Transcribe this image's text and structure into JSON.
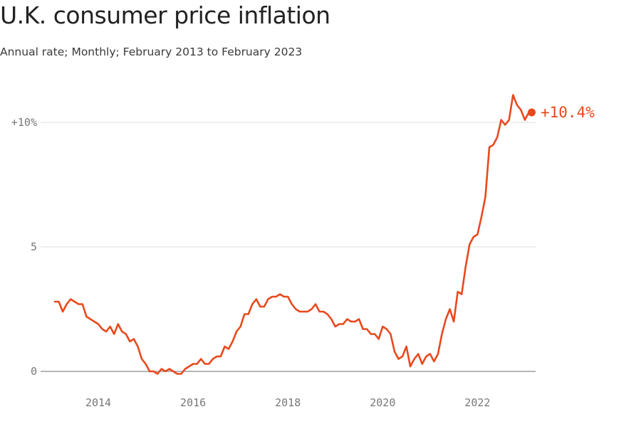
{
  "title": "U.K. consumer price inflation",
  "subtitle": "Annual rate; Monthly; February 2013 to February 2023",
  "chart_data": {
    "type": "line",
    "title": "U.K. consumer price inflation",
    "subtitle": "Annual rate; Monthly; February 2013 to February 2023",
    "xlabel": "",
    "ylabel": "",
    "xlim": [
      "2013-02",
      "2023-02"
    ],
    "ylim": [
      0,
      11.5
    ],
    "yticks": [
      {
        "value": 0,
        "label": "0"
      },
      {
        "value": 5,
        "label": "5"
      },
      {
        "value": 10,
        "label": "+10%"
      }
    ],
    "xticks": [
      {
        "date": "2014-01",
        "label": "2014"
      },
      {
        "date": "2016-01",
        "label": "2016"
      },
      {
        "date": "2018-01",
        "label": "2018"
      },
      {
        "date": "2020-01",
        "label": "2020"
      },
      {
        "date": "2022-01",
        "label": "2022"
      }
    ],
    "grid": true,
    "line_color": "#e8491d",
    "end_label": "+10.4%",
    "series": [
      {
        "x": [
          "2013-02",
          "2013-03",
          "2013-04",
          "2013-05",
          "2013-06",
          "2013-07",
          "2013-08",
          "2013-09",
          "2013-10",
          "2013-11",
          "2013-12",
          "2014-01",
          "2014-02",
          "2014-03",
          "2014-04",
          "2014-05",
          "2014-06",
          "2014-07",
          "2014-08",
          "2014-09",
          "2014-10",
          "2014-11",
          "2014-12",
          "2015-01",
          "2015-02",
          "2015-03",
          "2015-04",
          "2015-05",
          "2015-06",
          "2015-07",
          "2015-08",
          "2015-09",
          "2015-10",
          "2015-11",
          "2015-12",
          "2016-01",
          "2016-02",
          "2016-03",
          "2016-04",
          "2016-05",
          "2016-06",
          "2016-07",
          "2016-08",
          "2016-09",
          "2016-10",
          "2016-11",
          "2016-12",
          "2017-01",
          "2017-02",
          "2017-03",
          "2017-04",
          "2017-05",
          "2017-06",
          "2017-07",
          "2017-08",
          "2017-09",
          "2017-10",
          "2017-11",
          "2017-12",
          "2018-01",
          "2018-02",
          "2018-03",
          "2018-04",
          "2018-05",
          "2018-06",
          "2018-07",
          "2018-08",
          "2018-09",
          "2018-10",
          "2018-11",
          "2018-12",
          "2019-01",
          "2019-02",
          "2019-03",
          "2019-04",
          "2019-05",
          "2019-06",
          "2019-07",
          "2019-08",
          "2019-09",
          "2019-10",
          "2019-11",
          "2019-12",
          "2020-01",
          "2020-02",
          "2020-03",
          "2020-04",
          "2020-05",
          "2020-06",
          "2020-07",
          "2020-08",
          "2020-09",
          "2020-10",
          "2020-11",
          "2020-12",
          "2021-01",
          "2021-02",
          "2021-03",
          "2021-04",
          "2021-05",
          "2021-06",
          "2021-07",
          "2021-08",
          "2021-09",
          "2021-10",
          "2021-11",
          "2021-12",
          "2022-01",
          "2022-02",
          "2022-03",
          "2022-04",
          "2022-05",
          "2022-06",
          "2022-07",
          "2022-08",
          "2022-09",
          "2022-10",
          "2022-11",
          "2022-12",
          "2023-01",
          "2023-02"
        ],
        "y": [
          2.8,
          2.8,
          2.4,
          2.7,
          2.9,
          2.8,
          2.7,
          2.7,
          2.2,
          2.1,
          2.0,
          1.9,
          1.7,
          1.6,
          1.8,
          1.5,
          1.9,
          1.6,
          1.5,
          1.2,
          1.3,
          1.0,
          0.5,
          0.3,
          0.0,
          0.0,
          -0.1,
          0.1,
          0.0,
          0.1,
          0.0,
          -0.1,
          -0.1,
          0.1,
          0.2,
          0.3,
          0.3,
          0.5,
          0.3,
          0.3,
          0.5,
          0.6,
          0.6,
          1.0,
          0.9,
          1.2,
          1.6,
          1.8,
          2.3,
          2.3,
          2.7,
          2.9,
          2.6,
          2.6,
          2.9,
          3.0,
          3.0,
          3.1,
          3.0,
          3.0,
          2.7,
          2.5,
          2.4,
          2.4,
          2.4,
          2.5,
          2.7,
          2.4,
          2.4,
          2.3,
          2.1,
          1.8,
          1.9,
          1.9,
          2.1,
          2.0,
          2.0,
          2.1,
          1.7,
          1.7,
          1.5,
          1.5,
          1.3,
          1.8,
          1.7,
          1.5,
          0.8,
          0.5,
          0.6,
          1.0,
          0.2,
          0.5,
          0.7,
          0.3,
          0.6,
          0.7,
          0.4,
          0.7,
          1.5,
          2.1,
          2.5,
          2.0,
          3.2,
          3.1,
          4.2,
          5.1,
          5.4,
          5.5,
          6.2,
          7.0,
          9.0,
          9.1,
          9.4,
          10.1,
          9.9,
          10.1,
          11.1,
          10.7,
          10.5,
          10.1,
          10.4
        ]
      }
    ]
  }
}
